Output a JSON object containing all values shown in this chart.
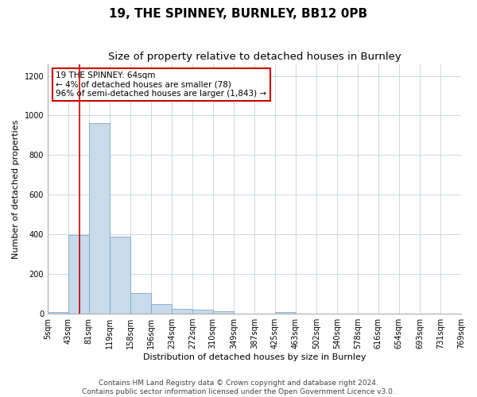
{
  "title1": "19, THE SPINNEY, BURNLEY, BB12 0PB",
  "title2": "Size of property relative to detached houses in Burnley",
  "xlabel": "Distribution of detached houses by size in Burnley",
  "ylabel": "Number of detached properties",
  "footnote": "Contains HM Land Registry data © Crown copyright and database right 2024.\nContains public sector information licensed under the Open Government Licence v3.0.",
  "bar_color": "#c9daea",
  "bar_edge_color": "#7aaac8",
  "grid_color": "#d0d8e0",
  "annotation_box_color": "#cc0000",
  "vline_color": "#cc0000",
  "bin_edges": [
    5,
    43,
    81,
    119,
    158,
    196,
    234,
    272,
    310,
    349,
    387,
    425,
    463,
    502,
    540,
    578,
    616,
    654,
    693,
    731,
    769
  ],
  "bar_heights": [
    10,
    395,
    960,
    390,
    105,
    50,
    25,
    20,
    12,
    0,
    0,
    10,
    0,
    0,
    0,
    0,
    0,
    0,
    0,
    0
  ],
  "property_size": 64,
  "ylim": [
    0,
    1260
  ],
  "yticks": [
    0,
    200,
    400,
    600,
    800,
    1000,
    1200
  ],
  "annotation_lines": [
    "19 THE SPINNEY: 64sqm",
    "← 4% of detached houses are smaller (78)",
    "96% of semi-detached houses are larger (1,843) →"
  ],
  "title1_fontsize": 11,
  "title2_fontsize": 9.5,
  "axis_label_fontsize": 8,
  "tick_fontsize": 7,
  "annotation_fontsize": 7.5,
  "footnote_fontsize": 6.5
}
